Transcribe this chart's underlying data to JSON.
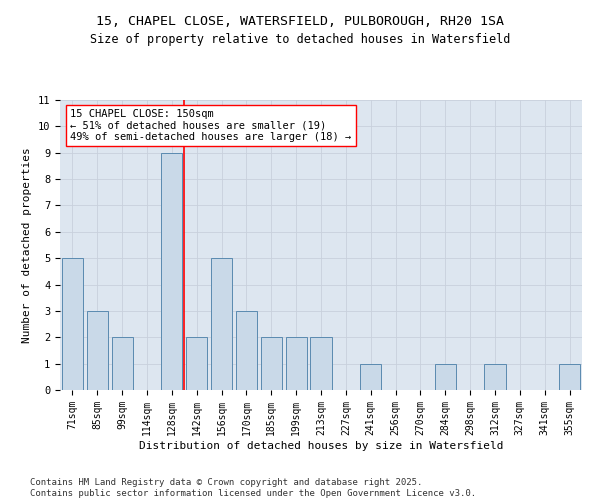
{
  "title_line1": "15, CHAPEL CLOSE, WATERSFIELD, PULBOROUGH, RH20 1SA",
  "title_line2": "Size of property relative to detached houses in Watersfield",
  "xlabel": "Distribution of detached houses by size in Watersfield",
  "ylabel": "Number of detached properties",
  "categories": [
    "71sqm",
    "85sqm",
    "99sqm",
    "114sqm",
    "128sqm",
    "142sqm",
    "156sqm",
    "170sqm",
    "185sqm",
    "199sqm",
    "213sqm",
    "227sqm",
    "241sqm",
    "256sqm",
    "270sqm",
    "284sqm",
    "298sqm",
    "312sqm",
    "327sqm",
    "341sqm",
    "355sqm"
  ],
  "values": [
    5,
    3,
    2,
    0,
    9,
    2,
    5,
    3,
    2,
    2,
    2,
    0,
    1,
    0,
    0,
    1,
    0,
    1,
    0,
    0,
    1
  ],
  "bar_color": "#c9d9e8",
  "bar_edge_color": "#5a8ab0",
  "subject_line_index": 4,
  "subject_line_label": "15 CHAPEL CLOSE: 150sqm",
  "annotation_line1": "← 51% of detached houses are smaller (19)",
  "annotation_line2": "49% of semi-detached houses are larger (18) →",
  "annotation_box_color": "white",
  "annotation_box_edge_color": "red",
  "subject_line_color": "red",
  "ylim": [
    0,
    11
  ],
  "yticks": [
    0,
    1,
    2,
    3,
    4,
    5,
    6,
    7,
    8,
    9,
    10,
    11
  ],
  "grid_color": "#c8d0dc",
  "background_color": "#dde6f0",
  "footer_line1": "Contains HM Land Registry data © Crown copyright and database right 2025.",
  "footer_line2": "Contains public sector information licensed under the Open Government Licence v3.0.",
  "title_fontsize": 9.5,
  "subtitle_fontsize": 8.5,
  "axis_label_fontsize": 8,
  "tick_fontsize": 7,
  "annotation_fontsize": 7.5,
  "footer_fontsize": 6.5
}
